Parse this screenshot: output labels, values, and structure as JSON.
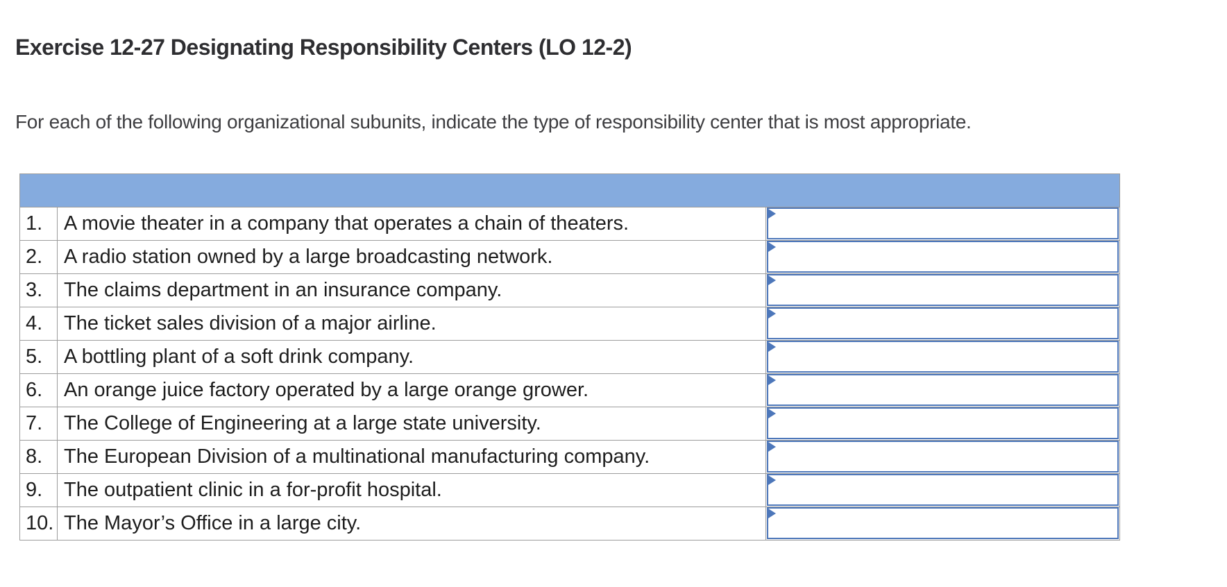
{
  "page": {
    "title": "Exercise 12-27 Designating Responsibility Centers (LO 12-2)",
    "instruction": "For each of the following organizational subunits, indicate the type of responsibility center that is most appropriate."
  },
  "colors": {
    "header_fill": "#85abde",
    "answer_border": "#4d77ba",
    "grid_line": "#9c9c9c"
  },
  "table": {
    "header_label": "",
    "rows": [
      {
        "num": "1.",
        "description": "A movie theater in a company that operates a chain of theaters.",
        "answer_value": ""
      },
      {
        "num": "2.",
        "description": "A radio station owned by a large broadcasting network.",
        "answer_value": ""
      },
      {
        "num": "3.",
        "description": "The claims department in an insurance company.",
        "answer_value": ""
      },
      {
        "num": "4.",
        "description": "The ticket sales division of a major airline.",
        "answer_value": ""
      },
      {
        "num": "5.",
        "description": "A bottling plant of a soft drink company.",
        "answer_value": ""
      },
      {
        "num": "6.",
        "description": "An orange juice factory operated by a large orange grower.",
        "answer_value": ""
      },
      {
        "num": "7.",
        "description": "The College of Engineering at a large state university.",
        "answer_value": ""
      },
      {
        "num": "8.",
        "description": "The European Division of a multinational manufacturing company.",
        "answer_value": ""
      },
      {
        "num": "9.",
        "description": "The outpatient clinic in a for-profit hospital.",
        "answer_value": ""
      },
      {
        "num": "10.",
        "description": "The Mayor’s Office in a large city.",
        "answer_value": ""
      }
    ]
  }
}
